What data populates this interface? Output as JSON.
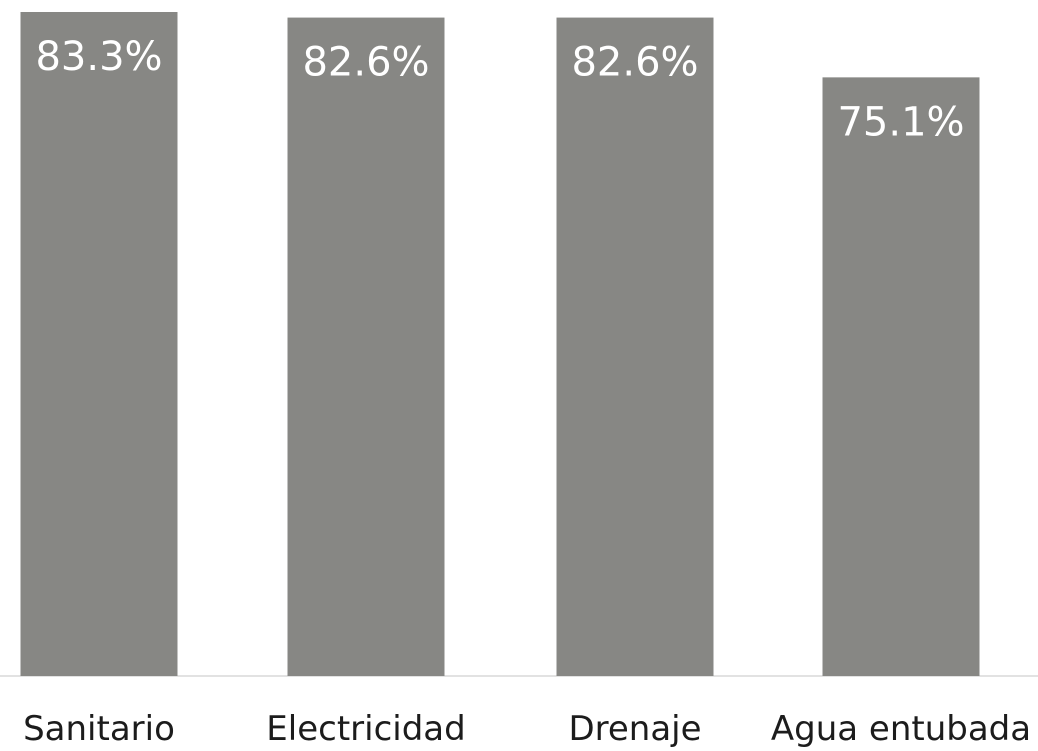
{
  "chart_data": {
    "type": "bar",
    "title": "",
    "xlabel": "",
    "ylabel": "",
    "categories": [
      "Sanitario",
      "Electricidad",
      "Drenaje",
      "Agua entubada"
    ],
    "values": [
      83.3,
      82.6,
      82.6,
      75.1
    ],
    "value_labels": [
      "83.3%",
      "82.6%",
      "82.6%",
      "75.1%"
    ],
    "ylim": [
      0,
      83.3
    ],
    "grid": false,
    "legend": "none",
    "colors": {
      "bar": "#878784",
      "value_text": "#ffffff",
      "category_text": "#1c1c1c",
      "baseline": "#e2e2e2"
    }
  }
}
